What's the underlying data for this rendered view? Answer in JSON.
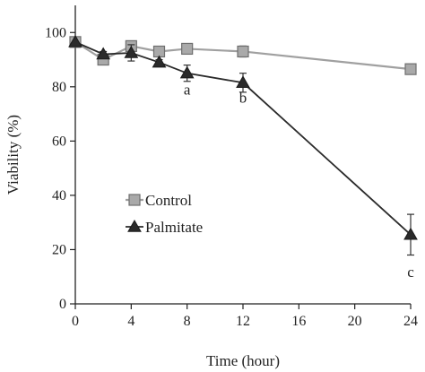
{
  "chart_data": {
    "type": "line",
    "xlabel": "Time (hour)",
    "ylabel": "Viability (%)",
    "xlim": [
      0,
      24
    ],
    "ylim": [
      0,
      110
    ],
    "xticks": [
      0,
      4,
      8,
      12,
      16,
      20,
      24
    ],
    "yticks": [
      0,
      20,
      40,
      60,
      80,
      100
    ],
    "grid": false,
    "legend_position": "center-left",
    "series": [
      {
        "name": "Control",
        "marker": "square",
        "color": "#a0a0a0",
        "x": [
          0,
          2,
          4,
          6,
          8,
          12,
          24
        ],
        "y": [
          96.5,
          90,
          95,
          93,
          94,
          93,
          86.5
        ],
        "error": [
          0,
          1,
          1,
          1,
          0,
          2,
          0
        ]
      },
      {
        "name": "Palmitate",
        "marker": "triangle",
        "color": "#2a2a2a",
        "x": [
          0,
          2,
          4,
          6,
          8,
          12,
          24
        ],
        "y": [
          96.5,
          92,
          92.5,
          89,
          85,
          81.5,
          25.5
        ],
        "error": [
          0,
          1,
          3,
          1,
          3,
          3.5,
          7.5
        ]
      }
    ],
    "annotations": [
      {
        "text": "a",
        "x": 8,
        "y": 85
      },
      {
        "text": "b",
        "x": 12,
        "y": 81.5
      },
      {
        "text": "c",
        "x": 24,
        "y": 25.5
      }
    ]
  }
}
